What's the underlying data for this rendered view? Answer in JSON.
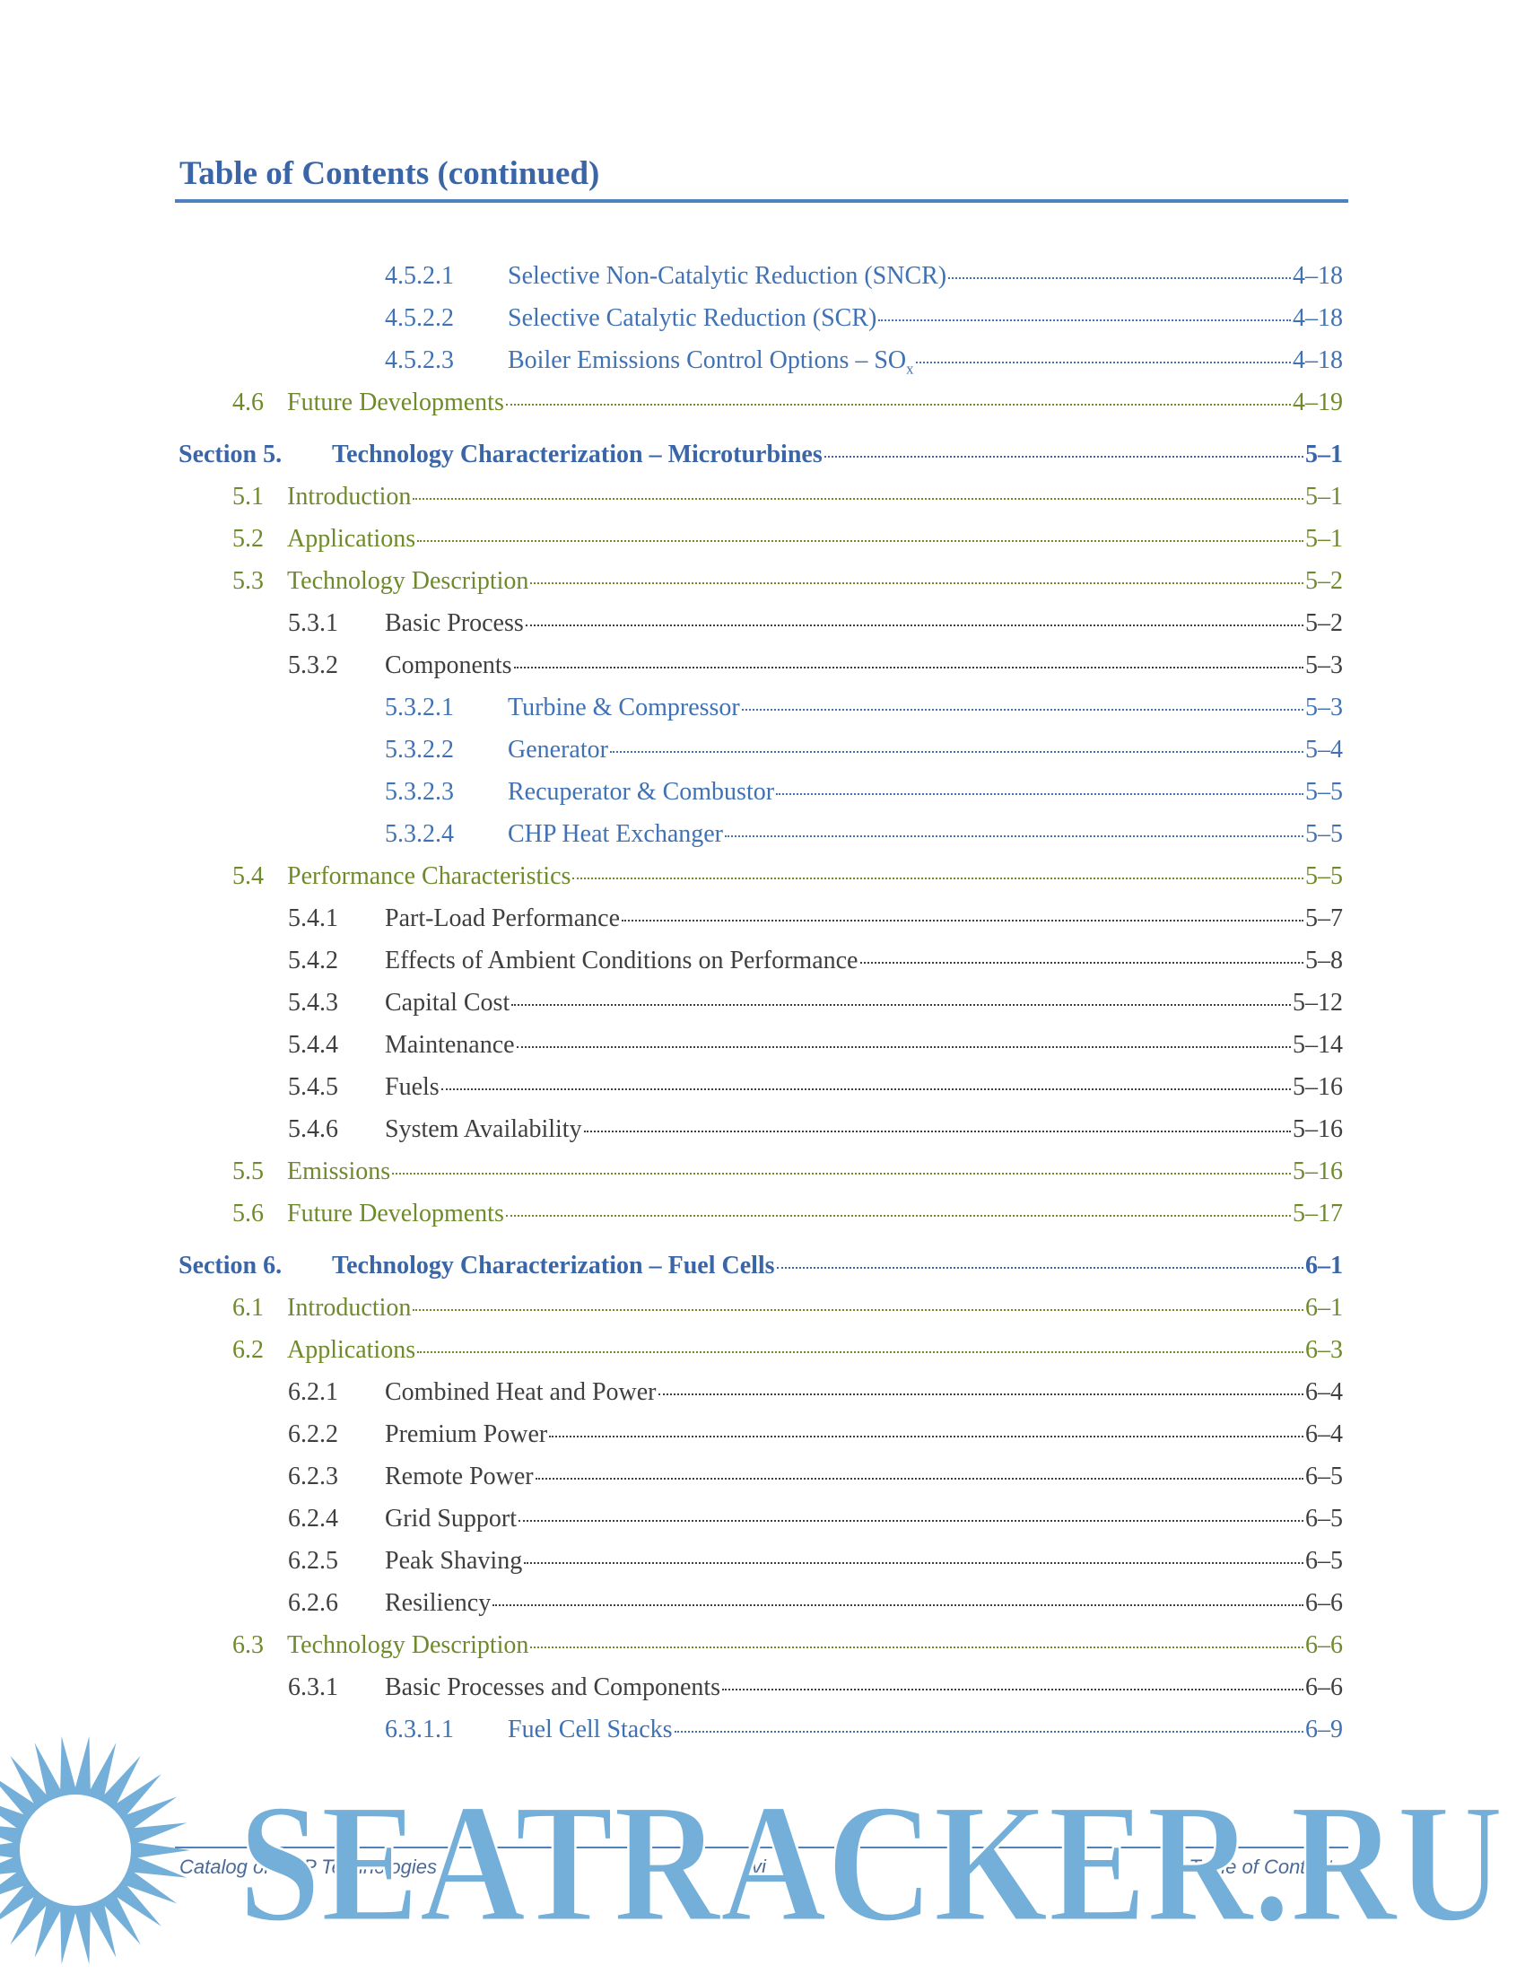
{
  "header": {
    "title": "Table of Contents (continued)"
  },
  "entries": [
    {
      "level": 3,
      "number": "4.5.2.1",
      "title": "Selective Non-Catalytic Reduction (SNCR)",
      "page": "4–18"
    },
    {
      "level": 3,
      "number": "4.5.2.2",
      "title": "Selective Catalytic Reduction (SCR)",
      "page": "4–18"
    },
    {
      "level": 3,
      "number": "4.5.2.3",
      "title": "Boiler Emissions Control Options – SO",
      "title_sub": "x",
      "page": "4–18"
    },
    {
      "level": 1,
      "number": "4.6",
      "title": "Future Developments",
      "page": "4–19"
    },
    {
      "level": 0,
      "number": "Section 5.",
      "title": "Technology Characterization – Microturbines",
      "page": "5–1"
    },
    {
      "level": 1,
      "number": "5.1",
      "title": "Introduction",
      "page": "5–1"
    },
    {
      "level": 1,
      "number": "5.2",
      "title": "Applications",
      "page": "5–1"
    },
    {
      "level": 1,
      "number": "5.3",
      "title": "Technology Description",
      "page": "5–2"
    },
    {
      "level": 2,
      "number": "5.3.1",
      "title": "Basic Process",
      "page": "5–2"
    },
    {
      "level": 2,
      "number": "5.3.2",
      "title": "Components",
      "page": "5–3"
    },
    {
      "level": 3,
      "number": "5.3.2.1",
      "title": "Turbine & Compressor",
      "page": "5–3"
    },
    {
      "level": 3,
      "number": "5.3.2.2",
      "title": "Generator",
      "page": "5–4"
    },
    {
      "level": 3,
      "number": "5.3.2.3",
      "title": "Recuperator & Combustor",
      "page": "5–5"
    },
    {
      "level": 3,
      "number": "5.3.2.4",
      "title": "CHP Heat Exchanger",
      "page": "5–5"
    },
    {
      "level": 1,
      "number": "5.4",
      "title": "Performance Characteristics",
      "page": "5–5"
    },
    {
      "level": 2,
      "number": "5.4.1",
      "title": "Part-Load Performance",
      "page": "5–7"
    },
    {
      "level": 2,
      "number": "5.4.2",
      "title": "Effects of Ambient Conditions on Performance",
      "page": "5–8"
    },
    {
      "level": 2,
      "number": "5.4.3",
      "title": "Capital Cost",
      "page": "5–12"
    },
    {
      "level": 2,
      "number": "5.4.4",
      "title": "Maintenance",
      "page": "5–14"
    },
    {
      "level": 2,
      "number": "5.4.5",
      "title": "Fuels",
      "page": "5–16"
    },
    {
      "level": 2,
      "number": "5.4.6",
      "title": "System Availability",
      "page": "5–16"
    },
    {
      "level": 1,
      "number": "5.5",
      "title": "Emissions",
      "page": "5–16"
    },
    {
      "level": 1,
      "number": "5.6",
      "title": "Future Developments",
      "page": "5–17"
    },
    {
      "level": 0,
      "number": "Section 6.",
      "title": "Technology Characterization – Fuel Cells",
      "page": "6–1"
    },
    {
      "level": 1,
      "number": "6.1",
      "title": "Introduction",
      "page": "6–1"
    },
    {
      "level": 1,
      "number": "6.2",
      "title": "Applications",
      "page": "6–3"
    },
    {
      "level": 2,
      "number": "6.2.1",
      "title": "Combined Heat and Power",
      "page": "6–4"
    },
    {
      "level": 2,
      "number": "6.2.2",
      "title": "Premium Power",
      "page": "6–4"
    },
    {
      "level": 2,
      "number": "6.2.3",
      "title": "Remote Power",
      "page": "6–5"
    },
    {
      "level": 2,
      "number": "6.2.4",
      "title": "Grid Support",
      "page": "6–5"
    },
    {
      "level": 2,
      "number": "6.2.5",
      "title": "Peak Shaving",
      "page": "6–5"
    },
    {
      "level": 2,
      "number": "6.2.6",
      "title": "Resiliency",
      "page": "6–6"
    },
    {
      "level": 1,
      "number": "6.3",
      "title": "Technology Description",
      "page": "6–6"
    },
    {
      "level": 2,
      "number": "6.3.1",
      "title": "Basic Processes and Components",
      "page": "6–6"
    },
    {
      "level": 3,
      "number": "6.3.1.1",
      "title": "Fuel Cell Stacks",
      "page": "6–9"
    }
  ],
  "footer": {
    "left": "Catalog of CHP Technologies",
    "center": "vi",
    "right": "Table of Contents"
  },
  "watermark": "SEATRACKER.RU"
}
